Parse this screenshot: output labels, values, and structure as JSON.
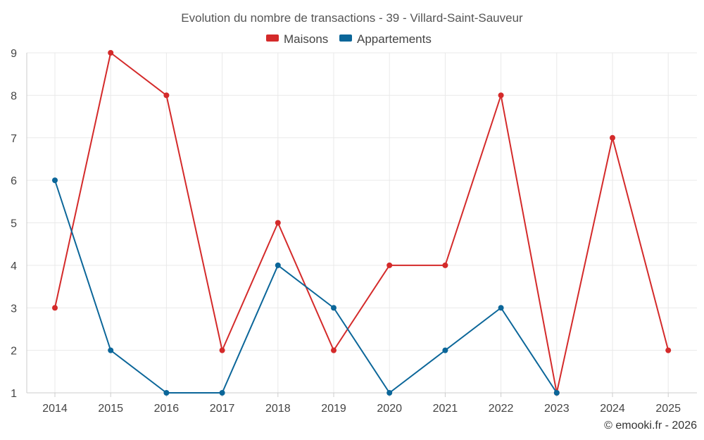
{
  "chart_data": {
    "type": "line",
    "title": "Evolution du nombre de transactions - 39 - Villard-Saint-Sauveur",
    "categories": [
      "2014",
      "2015",
      "2016",
      "2017",
      "2018",
      "2019",
      "2020",
      "2021",
      "2022",
      "2023",
      "2024",
      "2025"
    ],
    "series": [
      {
        "name": "Maisons",
        "color": "#d42a2a",
        "values": [
          3,
          9,
          8,
          2,
          5,
          2,
          4,
          4,
          8,
          1,
          7,
          2
        ]
      },
      {
        "name": "Appartements",
        "color": "#0b6699",
        "values": [
          6,
          2,
          1,
          1,
          4,
          3,
          1,
          2,
          3,
          1,
          null,
          null
        ]
      }
    ],
    "yticks": [
      "1",
      "2",
      "3",
      "4",
      "5",
      "6",
      "7",
      "8",
      "9"
    ],
    "ylim": [
      1,
      9
    ],
    "xlabel": "",
    "ylabel": "",
    "legend_position": "top-center",
    "grid": true
  },
  "credit": "© emooki.fr - 2026"
}
